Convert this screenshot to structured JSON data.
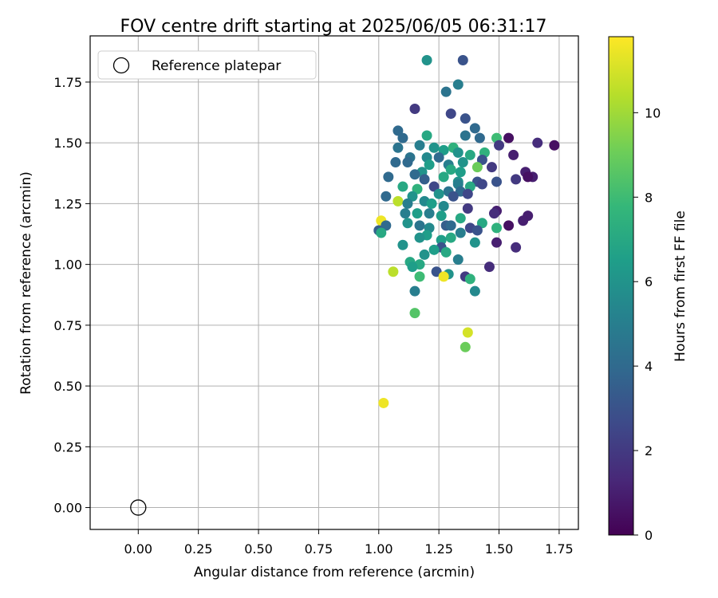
{
  "chart_data": {
    "type": "scatter",
    "title": "FOV centre drift starting at 2025/06/05 06:31:17",
    "xlabel": "Angular distance from reference (arcmin)",
    "ylabel": "Rotation from reference (arcmin)",
    "xlim": [
      -0.2,
      1.83
    ],
    "ylim": [
      -0.09,
      1.94
    ],
    "xticks": [
      "0.00",
      "0.25",
      "0.50",
      "0.75",
      "1.00",
      "1.25",
      "1.50",
      "1.75"
    ],
    "xtick_values": [
      0,
      0.25,
      0.5,
      0.75,
      1.0,
      1.25,
      1.5,
      1.75
    ],
    "yticks": [
      "0.00",
      "0.25",
      "0.50",
      "0.75",
      "1.00",
      "1.25",
      "1.50",
      "1.75"
    ],
    "ytick_values": [
      0,
      0.25,
      0.5,
      0.75,
      1.0,
      1.25,
      1.5,
      1.75
    ],
    "grid": true,
    "legend": {
      "placement": "top-left",
      "label": "Reference platepar"
    },
    "reference_point": {
      "x": 0.0,
      "y": 0.0
    },
    "colorbar": {
      "label": "Hours from first FF file",
      "colormap": "viridis",
      "range": [
        0,
        11.8
      ],
      "ticks": [
        "0",
        "2",
        "4",
        "6",
        "8",
        "10"
      ],
      "tick_values": [
        0,
        2,
        4,
        6,
        8,
        10
      ]
    },
    "series": [
      {
        "points": [
          [
            1.35,
            1.84,
            3.0
          ],
          [
            1.2,
            1.84,
            6.0
          ],
          [
            1.33,
            1.74,
            5.0
          ],
          [
            1.28,
            1.71,
            4.5
          ],
          [
            1.15,
            1.64,
            2.0
          ],
          [
            1.3,
            1.62,
            2.5
          ],
          [
            1.36,
            1.6,
            3.0
          ],
          [
            1.4,
            1.56,
            4.0
          ],
          [
            1.08,
            1.55,
            4.0
          ],
          [
            1.1,
            1.52,
            4.0
          ],
          [
            1.2,
            1.53,
            7.0
          ],
          [
            1.36,
            1.53,
            4.5
          ],
          [
            1.42,
            1.52,
            4.0
          ],
          [
            1.49,
            1.52,
            8.0
          ],
          [
            1.54,
            1.52,
            0.5
          ],
          [
            1.66,
            1.5,
            1.5
          ],
          [
            1.73,
            1.49,
            0.5
          ],
          [
            1.5,
            1.49,
            2.0
          ],
          [
            1.08,
            1.48,
            4.5
          ],
          [
            1.17,
            1.49,
            5.0
          ],
          [
            1.23,
            1.48,
            6.0
          ],
          [
            1.27,
            1.47,
            6.5
          ],
          [
            1.31,
            1.48,
            7.5
          ],
          [
            1.33,
            1.46,
            6.0
          ],
          [
            1.44,
            1.46,
            7.5
          ],
          [
            1.38,
            1.45,
            7.0
          ],
          [
            1.56,
            1.45,
            1.0
          ],
          [
            1.13,
            1.44,
            4.5
          ],
          [
            1.2,
            1.44,
            5.5
          ],
          [
            1.25,
            1.44,
            4.0
          ],
          [
            1.07,
            1.42,
            4.0
          ],
          [
            1.12,
            1.42,
            4.0
          ],
          [
            1.35,
            1.42,
            6.0
          ],
          [
            1.43,
            1.43,
            3.0
          ],
          [
            1.21,
            1.41,
            6.5
          ],
          [
            1.29,
            1.41,
            5.0
          ],
          [
            1.41,
            1.4,
            9.0
          ],
          [
            1.47,
            1.4,
            2.0
          ],
          [
            1.3,
            1.39,
            7.0
          ],
          [
            1.18,
            1.38,
            6.0
          ],
          [
            1.34,
            1.38,
            6.5
          ],
          [
            1.61,
            1.38,
            1.0
          ],
          [
            1.15,
            1.37,
            4.0
          ],
          [
            1.27,
            1.36,
            7.0
          ],
          [
            1.64,
            1.36,
            1.0
          ],
          [
            1.62,
            1.36,
            0.5
          ],
          [
            1.57,
            1.35,
            2.0
          ],
          [
            1.04,
            1.36,
            4.0
          ],
          [
            1.19,
            1.35,
            3.5
          ],
          [
            1.33,
            1.34,
            6.0
          ],
          [
            1.41,
            1.34,
            3.0
          ],
          [
            1.49,
            1.34,
            3.0
          ],
          [
            1.43,
            1.33,
            2.5
          ],
          [
            1.23,
            1.32,
            2.5
          ],
          [
            1.33,
            1.33,
            5.0
          ],
          [
            1.38,
            1.32,
            7.0
          ],
          [
            1.1,
            1.32,
            7.0
          ],
          [
            1.16,
            1.31,
            7.5
          ],
          [
            1.29,
            1.3,
            4.5
          ],
          [
            1.34,
            1.3,
            4.0
          ],
          [
            1.25,
            1.29,
            6.0
          ],
          [
            1.31,
            1.28,
            3.0
          ],
          [
            1.37,
            1.29,
            2.5
          ],
          [
            1.14,
            1.28,
            6.0
          ],
          [
            1.03,
            1.28,
            4.0
          ],
          [
            1.19,
            1.26,
            5.5
          ],
          [
            1.08,
            1.26,
            10.5
          ],
          [
            1.22,
            1.25,
            6.5
          ],
          [
            1.12,
            1.25,
            5.0
          ],
          [
            1.27,
            1.24,
            5.5
          ],
          [
            1.37,
            1.23,
            2.0
          ],
          [
            1.49,
            1.22,
            1.0
          ],
          [
            1.11,
            1.21,
            5.0
          ],
          [
            1.16,
            1.21,
            6.5
          ],
          [
            1.21,
            1.21,
            5.0
          ],
          [
            1.26,
            1.2,
            6.5
          ],
          [
            1.48,
            1.21,
            1.5
          ],
          [
            1.62,
            1.2,
            1.0
          ],
          [
            1.34,
            1.19,
            7.0
          ],
          [
            1.6,
            1.18,
            1.0
          ],
          [
            1.01,
            1.18,
            11.5
          ],
          [
            1.12,
            1.17,
            6.0
          ],
          [
            1.17,
            1.16,
            4.5
          ],
          [
            1.28,
            1.16,
            3.5
          ],
          [
            1.43,
            1.17,
            7.0
          ],
          [
            1.54,
            1.16,
            0.5
          ],
          [
            1.03,
            1.16,
            4.0
          ],
          [
            1.21,
            1.15,
            5.5
          ],
          [
            1.3,
            1.16,
            4.0
          ],
          [
            1.38,
            1.15,
            2.5
          ],
          [
            1.49,
            1.15,
            7.5
          ],
          [
            1.0,
            1.14,
            3.5
          ],
          [
            1.41,
            1.14,
            3.0
          ],
          [
            1.01,
            1.13,
            7.0
          ],
          [
            1.34,
            1.13,
            5.0
          ],
          [
            1.2,
            1.12,
            6.5
          ],
          [
            1.3,
            1.11,
            7.0
          ],
          [
            1.17,
            1.11,
            6.0
          ],
          [
            1.26,
            1.1,
            6.5
          ],
          [
            1.49,
            1.09,
            1.0
          ],
          [
            1.4,
            1.09,
            6.0
          ],
          [
            1.1,
            1.08,
            6.0
          ],
          [
            1.26,
            1.07,
            3.0
          ],
          [
            1.57,
            1.07,
            1.5
          ],
          [
            1.23,
            1.06,
            6.5
          ],
          [
            1.28,
            1.05,
            7.0
          ],
          [
            1.19,
            1.04,
            6.0
          ],
          [
            1.33,
            1.02,
            5.0
          ],
          [
            1.13,
            1.01,
            7.0
          ],
          [
            1.17,
            1.0,
            7.0
          ],
          [
            1.14,
            0.99,
            6.5
          ],
          [
            1.46,
            0.99,
            1.5
          ],
          [
            1.24,
            0.97,
            3.0
          ],
          [
            1.06,
            0.97,
            10.5
          ],
          [
            1.29,
            0.96,
            6.0
          ],
          [
            1.36,
            0.95,
            2.0
          ],
          [
            1.27,
            0.95,
            11.5
          ],
          [
            1.17,
            0.95,
            8.0
          ],
          [
            1.38,
            0.94,
            7.5
          ],
          [
            1.15,
            0.89,
            5.0
          ],
          [
            1.4,
            0.89,
            5.5
          ],
          [
            1.15,
            0.8,
            8.5
          ],
          [
            1.37,
            0.72,
            11.0
          ],
          [
            1.36,
            0.66,
            9.0
          ],
          [
            1.02,
            0.43,
            11.5
          ]
        ]
      }
    ]
  }
}
